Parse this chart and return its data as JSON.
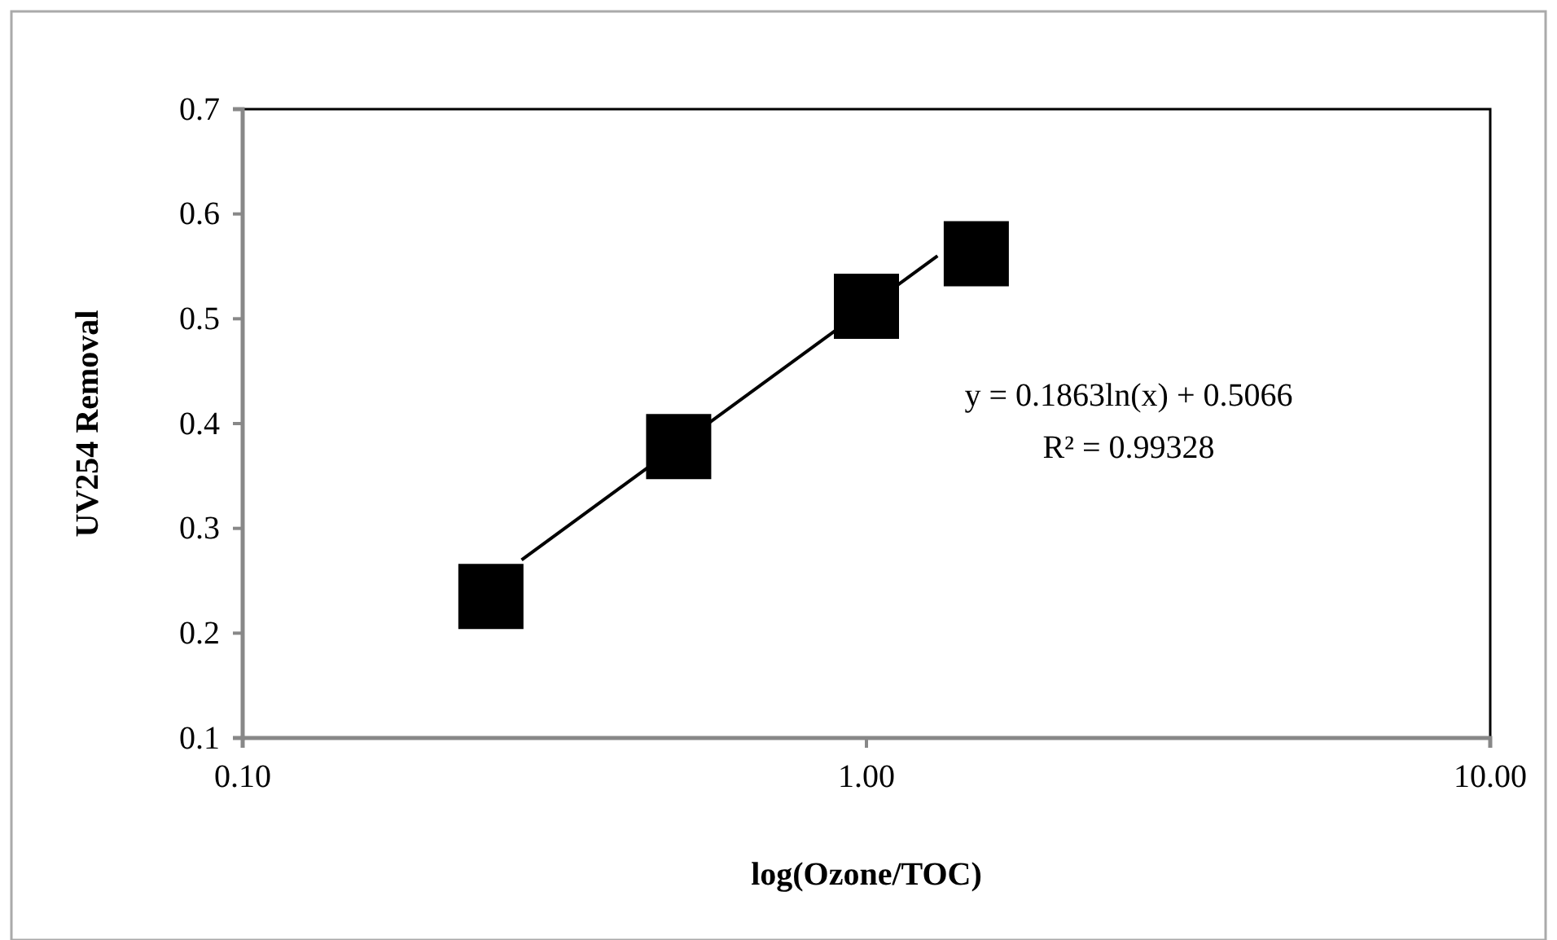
{
  "chart_data": {
    "type": "scatter",
    "xlabel": "log(Ozone/TOC)",
    "ylabel": "UV254 Removal",
    "log": "x",
    "xlim": [
      0.1,
      10
    ],
    "xticks": [
      {
        "value": 0.1,
        "label": "0.10"
      },
      {
        "value": 1,
        "label": "1.00"
      },
      {
        "value": 10,
        "label": "10.00"
      }
    ],
    "ylim": [
      0.1,
      0.7
    ],
    "yticks": [
      0.1,
      0.2,
      0.3,
      0.4,
      0.5,
      0.6,
      0.7
    ],
    "grid": false,
    "marker": "square",
    "series": [
      {
        "type": "line",
        "color": "#000000",
        "x": [
          0.28,
          1.3
        ],
        "values": [
          0.27,
          0.56
        ],
        "marker": "none",
        "line_style": "solid"
      },
      {
        "color": "#000000",
        "x": [
          0.25,
          0.5,
          1.0,
          1.5
        ],
        "values": [
          0.235,
          0.378,
          0.512,
          0.562
        ]
      }
    ],
    "annotations": [
      "y = 0.1863ln(x) + 0.5066",
      "R² = 0.99328"
    ]
  }
}
